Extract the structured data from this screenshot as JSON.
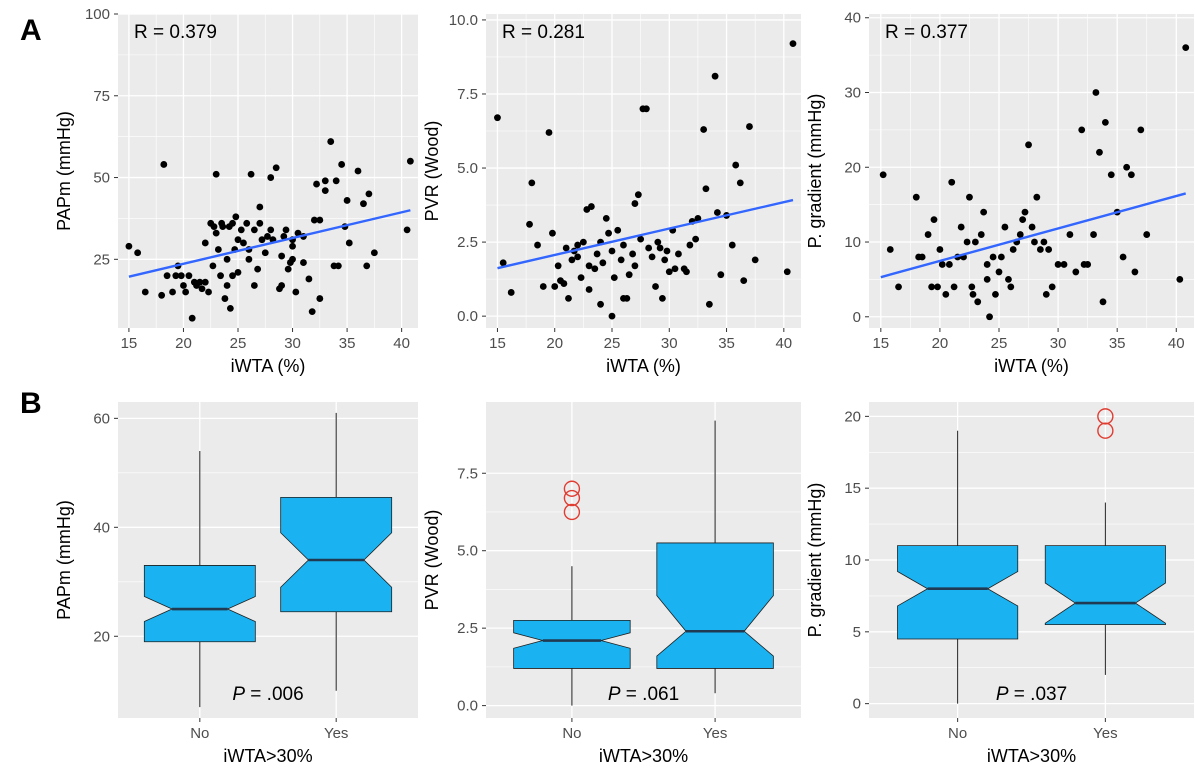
{
  "panels": {
    "a": "A",
    "b": "B"
  },
  "colors": {
    "panel_bg": "#ebebeb",
    "grid": "#ffffff",
    "point": "#000000",
    "fit_line": "#3366ff",
    "box_fill": "#1ab2f0",
    "box_stroke": "#1f1f1f",
    "median": "#1f3a52",
    "outlier": "#e03c31"
  },
  "chart_data": [
    {
      "type": "scatter",
      "panel": "A",
      "xlabel": "iWTA (%)",
      "ylabel": "PAPm (mmHg)",
      "annotation": "R =  0.379",
      "xlim": [
        14,
        41.5
      ],
      "ylim": [
        4,
        100
      ],
      "xticks": [
        15,
        20,
        25,
        30,
        35,
        40
      ],
      "yticks": [
        25,
        50,
        75,
        100
      ],
      "fit": [
        [
          15,
          19.7
        ],
        [
          40.8,
          40
        ]
      ],
      "points": [
        [
          15,
          29
        ],
        [
          15.8,
          27
        ],
        [
          16.5,
          15
        ],
        [
          18,
          14
        ],
        [
          18.2,
          54
        ],
        [
          18.5,
          20
        ],
        [
          19,
          15
        ],
        [
          19.3,
          20
        ],
        [
          19.5,
          23
        ],
        [
          19.8,
          20
        ],
        [
          20,
          17
        ],
        [
          20.2,
          15
        ],
        [
          20.5,
          20
        ],
        [
          20.8,
          7
        ],
        [
          21,
          18
        ],
        [
          21.2,
          17
        ],
        [
          21.5,
          18
        ],
        [
          21.7,
          16
        ],
        [
          22,
          30
        ],
        [
          22,
          18
        ],
        [
          22.3,
          15
        ],
        [
          22.5,
          36
        ],
        [
          22.7,
          23
        ],
        [
          22.8,
          35
        ],
        [
          23,
          51
        ],
        [
          23,
          33
        ],
        [
          23.2,
          28
        ],
        [
          23.4,
          20
        ],
        [
          23.5,
          36
        ],
        [
          23.6,
          35
        ],
        [
          23.8,
          13
        ],
        [
          24,
          17
        ],
        [
          24,
          25
        ],
        [
          24.2,
          35
        ],
        [
          24.3,
          10
        ],
        [
          24.5,
          36
        ],
        [
          24.5,
          20
        ],
        [
          24.7,
          28
        ],
        [
          24.8,
          38
        ],
        [
          25,
          21
        ],
        [
          25,
          31
        ],
        [
          25.3,
          34
        ],
        [
          25.5,
          30
        ],
        [
          25.8,
          36
        ],
        [
          26,
          28
        ],
        [
          26,
          25
        ],
        [
          26.2,
          51
        ],
        [
          26.5,
          17
        ],
        [
          26.5,
          34
        ],
        [
          26.8,
          22
        ],
        [
          27,
          36
        ],
        [
          27,
          41
        ],
        [
          27.2,
          31
        ],
        [
          27.5,
          27
        ],
        [
          27.7,
          32
        ],
        [
          28,
          34
        ],
        [
          28,
          50
        ],
        [
          28.2,
          31
        ],
        [
          28.5,
          53
        ],
        [
          28.8,
          16
        ],
        [
          29,
          26
        ],
        [
          29,
          17
        ],
        [
          29.2,
          32
        ],
        [
          29.4,
          34
        ],
        [
          29.6,
          22
        ],
        [
          29.8,
          24
        ],
        [
          30,
          31
        ],
        [
          30,
          29
        ],
        [
          30,
          25
        ],
        [
          30.3,
          15
        ],
        [
          30.5,
          33
        ],
        [
          31,
          24
        ],
        [
          31,
          32
        ],
        [
          31.5,
          19
        ],
        [
          31.8,
          9
        ],
        [
          32,
          37
        ],
        [
          32.2,
          48
        ],
        [
          32.5,
          37
        ],
        [
          32.5,
          13
        ],
        [
          33,
          46
        ],
        [
          33,
          49
        ],
        [
          33.5,
          61
        ],
        [
          33.8,
          23
        ],
        [
          34,
          49
        ],
        [
          34.2,
          23
        ],
        [
          34.5,
          54
        ],
        [
          34.8,
          35
        ],
        [
          35,
          43
        ],
        [
          35.2,
          30
        ],
        [
          36,
          52
        ],
        [
          36.5,
          42
        ],
        [
          36.8,
          23
        ],
        [
          37,
          45
        ],
        [
          37.5,
          27
        ],
        [
          40.5,
          34
        ],
        [
          40.8,
          55
        ]
      ]
    },
    {
      "type": "scatter",
      "panel": "A",
      "xlabel": "iWTA (%)",
      "ylabel": "PVR (Wood)",
      "annotation": "R =  0.281",
      "xlim": [
        14,
        41.5
      ],
      "ylim": [
        -0.4,
        10.2
      ],
      "xticks": [
        15,
        20,
        25,
        30,
        35,
        40
      ],
      "yticks": [
        0.0,
        2.5,
        5.0,
        7.5,
        10.0
      ],
      "fit": [
        [
          15,
          1.62
        ],
        [
          40.8,
          3.92
        ]
      ],
      "points": [
        [
          15,
          6.7
        ],
        [
          15.5,
          1.8
        ],
        [
          16.2,
          0.8
        ],
        [
          17.8,
          3.1
        ],
        [
          18,
          4.5
        ],
        [
          18.5,
          2.4
        ],
        [
          19,
          1.0
        ],
        [
          19.5,
          6.2
        ],
        [
          19.8,
          2.8
        ],
        [
          20,
          1.0
        ],
        [
          20.3,
          1.7
        ],
        [
          20.5,
          1.2
        ],
        [
          20.8,
          1.1
        ],
        [
          21,
          2.3
        ],
        [
          21.2,
          0.6
        ],
        [
          21.5,
          1.9
        ],
        [
          21.7,
          2.2
        ],
        [
          22,
          2.0
        ],
        [
          22,
          2.4
        ],
        [
          22.3,
          1.3
        ],
        [
          22.5,
          2.5
        ],
        [
          22.8,
          3.6
        ],
        [
          23,
          1.7
        ],
        [
          23,
          0.9
        ],
        [
          23.2,
          3.7
        ],
        [
          23.5,
          1.6
        ],
        [
          23.7,
          2.1
        ],
        [
          24,
          0.4
        ],
        [
          24,
          2.5
        ],
        [
          24.2,
          1.8
        ],
        [
          24.5,
          3.3
        ],
        [
          24.7,
          2.8
        ],
        [
          25,
          2.2
        ],
        [
          25,
          0.0
        ],
        [
          25.2,
          1.3
        ],
        [
          25.5,
          2.9
        ],
        [
          25.8,
          1.9
        ],
        [
          26,
          0.6
        ],
        [
          26,
          2.4
        ],
        [
          26.3,
          0.6
        ],
        [
          26.5,
          1.4
        ],
        [
          26.8,
          2.1
        ],
        [
          27,
          3.8
        ],
        [
          27,
          1.7
        ],
        [
          27.3,
          4.1
        ],
        [
          27.5,
          2.6
        ],
        [
          27.7,
          7.0
        ],
        [
          28,
          7.0
        ],
        [
          28.2,
          2.3
        ],
        [
          28.5,
          2.0
        ],
        [
          28.8,
          1.0
        ],
        [
          29,
          2.5
        ],
        [
          29.2,
          2.3
        ],
        [
          29.4,
          0.6
        ],
        [
          29.6,
          1.9
        ],
        [
          29.8,
          2.2
        ],
        [
          30,
          1.5
        ],
        [
          30.3,
          2.9
        ],
        [
          30.5,
          1.6
        ],
        [
          30.8,
          2.1
        ],
        [
          31.3,
          1.6
        ],
        [
          31.5,
          1.5
        ],
        [
          31.8,
          2.4
        ],
        [
          32,
          3.2
        ],
        [
          32.3,
          2.6
        ],
        [
          32.5,
          3.3
        ],
        [
          33,
          6.3
        ],
        [
          33.2,
          4.3
        ],
        [
          33.5,
          0.4
        ],
        [
          34,
          8.1
        ],
        [
          34.2,
          3.5
        ],
        [
          34.5,
          1.4
        ],
        [
          35,
          3.4
        ],
        [
          35.5,
          2.4
        ],
        [
          35.8,
          5.1
        ],
        [
          36.2,
          4.5
        ],
        [
          36.5,
          1.2
        ],
        [
          37,
          6.4
        ],
        [
          37.5,
          1.9
        ],
        [
          40.3,
          1.5
        ],
        [
          40.8,
          9.2
        ]
      ]
    },
    {
      "type": "scatter",
      "panel": "A",
      "xlabel": "iWTA (%)",
      "ylabel": "P. gradient (mmHg)",
      "annotation": "R =  0.377",
      "xlim": [
        14,
        41.5
      ],
      "ylim": [
        -1.5,
        40.5
      ],
      "xticks": [
        15,
        20,
        25,
        30,
        35,
        40
      ],
      "yticks": [
        0,
        10,
        20,
        30,
        40
      ],
      "fit": [
        [
          15,
          5.3
        ],
        [
          40.8,
          16.5
        ]
      ],
      "points": [
        [
          15.2,
          19
        ],
        [
          15.8,
          9
        ],
        [
          16.5,
          4
        ],
        [
          18,
          16
        ],
        [
          18.2,
          8
        ],
        [
          18.5,
          8
        ],
        [
          19,
          11
        ],
        [
          19.3,
          4
        ],
        [
          19.5,
          13
        ],
        [
          19.8,
          4
        ],
        [
          20,
          9
        ],
        [
          20.2,
          7
        ],
        [
          20.5,
          3
        ],
        [
          20.8,
          7
        ],
        [
          21,
          18
        ],
        [
          21.2,
          4
        ],
        [
          21.5,
          8
        ],
        [
          21.8,
          12
        ],
        [
          22,
          8
        ],
        [
          22.3,
          10
        ],
        [
          22.5,
          16
        ],
        [
          22.7,
          4
        ],
        [
          22.8,
          3
        ],
        [
          23,
          10
        ],
        [
          23.2,
          2
        ],
        [
          23.5,
          11
        ],
        [
          23.7,
          14
        ],
        [
          24,
          7
        ],
        [
          24,
          5
        ],
        [
          24.2,
          0
        ],
        [
          24.5,
          8
        ],
        [
          24.7,
          3
        ],
        [
          25,
          6
        ],
        [
          25.2,
          8
        ],
        [
          25.5,
          12
        ],
        [
          25.8,
          5
        ],
        [
          26,
          4
        ],
        [
          26.2,
          9
        ],
        [
          26.5,
          10
        ],
        [
          26.8,
          11
        ],
        [
          27,
          13
        ],
        [
          27.2,
          14
        ],
        [
          27.5,
          23
        ],
        [
          27.8,
          12
        ],
        [
          28,
          10
        ],
        [
          28.2,
          16
        ],
        [
          28.5,
          9
        ],
        [
          28.8,
          10
        ],
        [
          29,
          3
        ],
        [
          29.2,
          9
        ],
        [
          29.5,
          4
        ],
        [
          30,
          7
        ],
        [
          30.5,
          7
        ],
        [
          31,
          11
        ],
        [
          31.5,
          6
        ],
        [
          32,
          25
        ],
        [
          32.2,
          7
        ],
        [
          32.5,
          7
        ],
        [
          33,
          11
        ],
        [
          33.2,
          30
        ],
        [
          33.5,
          22
        ],
        [
          33.8,
          2
        ],
        [
          34,
          26
        ],
        [
          34.5,
          19
        ],
        [
          35,
          14
        ],
        [
          35.5,
          8
        ],
        [
          35.8,
          20
        ],
        [
          36.2,
          19
        ],
        [
          36.5,
          6
        ],
        [
          37,
          25
        ],
        [
          37.5,
          11
        ],
        [
          40.3,
          5
        ],
        [
          40.8,
          36
        ]
      ]
    },
    {
      "type": "boxplot",
      "panel": "B",
      "xlabel": "iWTA>30%",
      "ylabel": "PAPm (mmHg)",
      "annotation_p": "P",
      "annotation_val": " = .006",
      "categories": [
        "No",
        "Yes"
      ],
      "ylim": [
        5,
        63
      ],
      "yticks": [
        20,
        40,
        60
      ],
      "boxes": [
        {
          "min": 7,
          "q1": 19,
          "median": 25,
          "q3": 33,
          "max": 54,
          "notch_lo": 22.7,
          "notch_hi": 27.3,
          "outliers": []
        },
        {
          "min": 10,
          "q1": 24.5,
          "median": 34,
          "q3": 45.5,
          "max": 61,
          "notch_lo": 29,
          "notch_hi": 39,
          "outliers": []
        }
      ]
    },
    {
      "type": "boxplot",
      "panel": "B",
      "xlabel": "iWTA>30%",
      "ylabel": "PVR (Wood)",
      "annotation_p": "P",
      "annotation_val": " = .061",
      "categories": [
        "No",
        "Yes"
      ],
      "ylim": [
        -0.4,
        9.8
      ],
      "yticks": [
        0.0,
        2.5,
        5.0,
        7.5
      ],
      "boxes": [
        {
          "min": 0,
          "q1": 1.2,
          "median": 2.1,
          "q3": 2.75,
          "max": 4.5,
          "notch_lo": 1.85,
          "notch_hi": 2.35,
          "outliers": [
            6.25,
            6.7,
            7.0
          ]
        },
        {
          "min": 0.4,
          "q1": 1.2,
          "median": 2.4,
          "q3": 5.25,
          "max": 9.2,
          "notch_lo": 1.6,
          "notch_hi": 3.55,
          "outliers": []
        }
      ]
    },
    {
      "type": "boxplot",
      "panel": "B",
      "xlabel": "iWTA>30%",
      "ylabel": "P. gradient (mmHg)",
      "annotation_p": "P",
      "annotation_val": " = .037",
      "categories": [
        "No",
        "Yes"
      ],
      "ylim": [
        -1,
        21
      ],
      "yticks": [
        0,
        5,
        10,
        15,
        20
      ],
      "boxes": [
        {
          "min": 0,
          "q1": 4.5,
          "median": 8,
          "q3": 11,
          "max": 19,
          "notch_lo": 6.8,
          "notch_hi": 9.2,
          "outliers": []
        },
        {
          "min": 2,
          "q1": 5.5,
          "median": 7,
          "q3": 11,
          "max": 14,
          "notch_lo": 5.6,
          "notch_hi": 8.4,
          "outliers": [
            19,
            20
          ]
        }
      ]
    }
  ]
}
